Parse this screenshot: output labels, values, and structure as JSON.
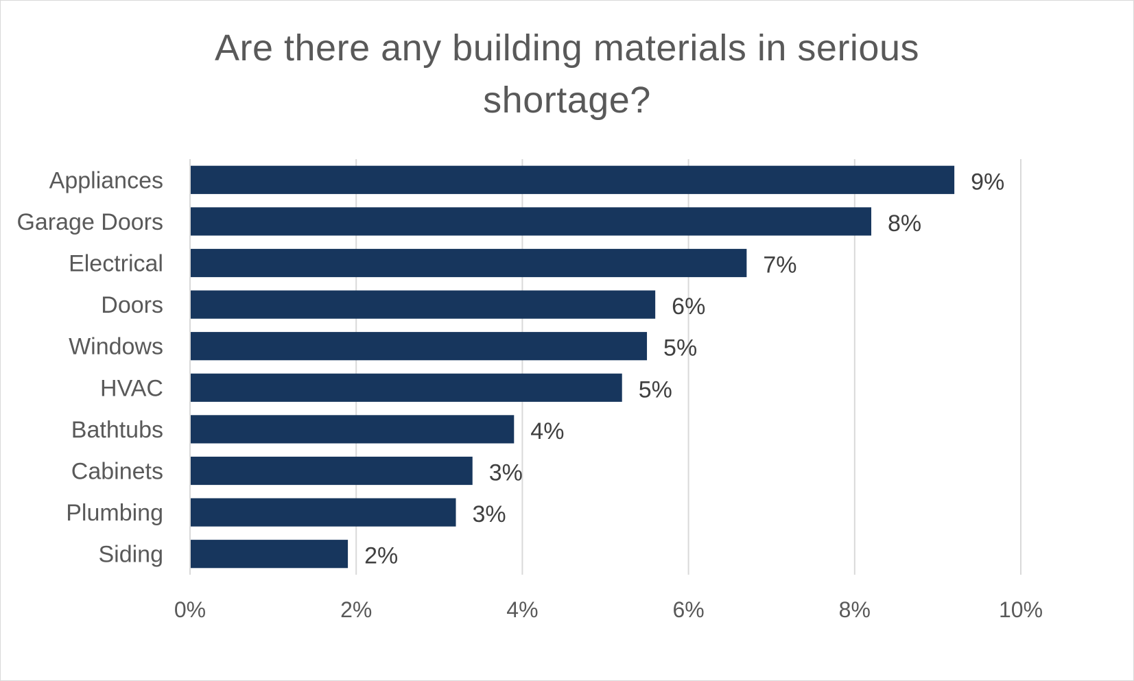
{
  "chart_data": {
    "type": "bar",
    "orientation": "horizontal",
    "title": "Are there any building materials in serious shortage?",
    "title_lines": [
      "Are there any building materials in serious",
      "shortage?"
    ],
    "xlabel": "",
    "ylabel": "",
    "categories": [
      "Appliances",
      "Garage Doors",
      "Electrical",
      "Doors",
      "Windows",
      "HVAC",
      "Bathtubs",
      "Cabinets",
      "Plumbing",
      "Siding"
    ],
    "values": [
      9.2,
      8.2,
      6.7,
      5.6,
      5.5,
      5.2,
      3.9,
      3.4,
      3.2,
      1.9
    ],
    "data_labels": [
      "9%",
      "8%",
      "7%",
      "6%",
      "5%",
      "5%",
      "4%",
      "3%",
      "3%",
      "2%"
    ],
    "unit": "%",
    "xlim": [
      0,
      10
    ],
    "x_ticks": [
      0,
      2,
      4,
      6,
      8,
      10
    ],
    "x_tick_labels": [
      "0%",
      "2%",
      "4%",
      "6%",
      "8%",
      "10%"
    ],
    "grid": "vertical",
    "legend": "none",
    "colors": {
      "bar": "#17365d",
      "grid": "#d9d9d9",
      "text": "#595959"
    }
  }
}
